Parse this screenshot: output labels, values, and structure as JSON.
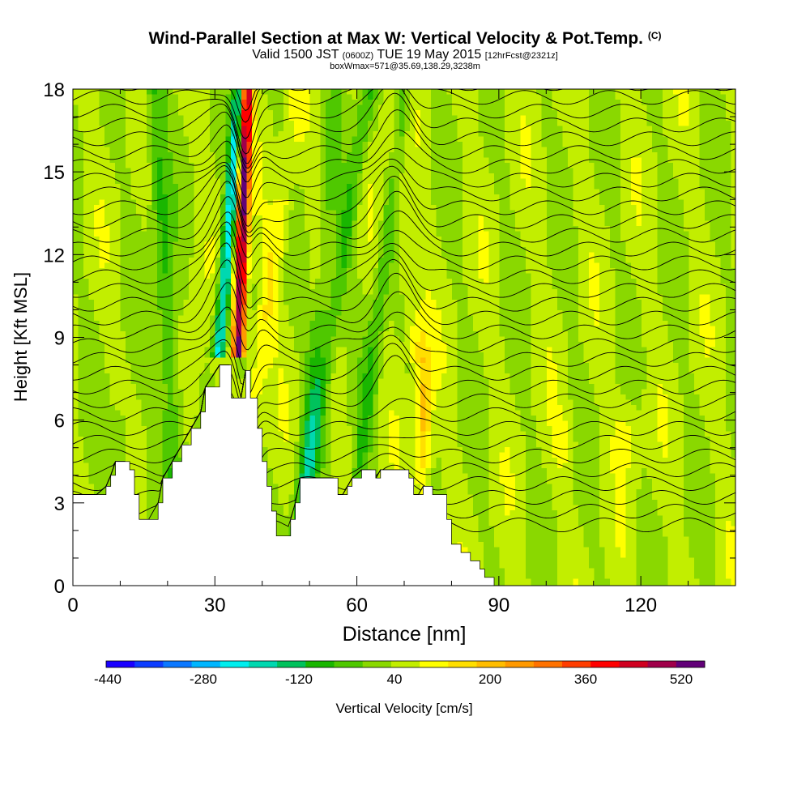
{
  "titles": {
    "main": "Wind-Parallel Section at Max W: Vertical Velocity & Pot.Temp.",
    "copyright": "(C)",
    "valid_prefix": "Valid 1500 JST",
    "valid_utc": "(0600Z)",
    "valid_date": "TUE 19 May 2015",
    "forecast": "[12hrFcst@2321z]",
    "box_info": "boxWmax=571@35.69,138.29,3238m"
  },
  "chart_data": {
    "type": "heatmap",
    "title": "Wind-Parallel Section at Max W: Vertical Velocity & Pot.Temp.",
    "xlabel": "Distance [nm]",
    "ylabel": "Height [Kft MSL]",
    "xlim": [
      0,
      140
    ],
    "ylim": [
      0,
      18
    ],
    "x_ticks": [
      0,
      30,
      60,
      90,
      120
    ],
    "y_ticks": [
      0,
      3,
      6,
      9,
      12,
      15,
      18
    ],
    "terrain_kft": [
      [
        0,
        3.3
      ],
      [
        5,
        3.3
      ],
      [
        7,
        3.6
      ],
      [
        8,
        4.0
      ],
      [
        9,
        4.5
      ],
      [
        11,
        4.5
      ],
      [
        12,
        4.2
      ],
      [
        13,
        3.3
      ],
      [
        14,
        2.4
      ],
      [
        16,
        2.4
      ],
      [
        18,
        3.0
      ],
      [
        19,
        3.9
      ],
      [
        21,
        4.5
      ],
      [
        23,
        5.1
      ],
      [
        25,
        5.7
      ],
      [
        27,
        6.3
      ],
      [
        28,
        7.2
      ],
      [
        31,
        8.0
      ],
      [
        33,
        8.0
      ],
      [
        33.5,
        6.8
      ],
      [
        35.5,
        6.8
      ],
      [
        36.5,
        7.8
      ],
      [
        37.5,
        6.8
      ],
      [
        39,
        5.7
      ],
      [
        40,
        4.5
      ],
      [
        41,
        3.6
      ],
      [
        42,
        2.7
      ],
      [
        43,
        1.8
      ],
      [
        45,
        1.8
      ],
      [
        46,
        2.4
      ],
      [
        47,
        3.0
      ],
      [
        48,
        3.9
      ],
      [
        51,
        3.9
      ],
      [
        55,
        3.9
      ],
      [
        56,
        3.3
      ],
      [
        57,
        3.3
      ],
      [
        58,
        3.6
      ],
      [
        59,
        3.9
      ],
      [
        61,
        4.2
      ],
      [
        63,
        4.2
      ],
      [
        64,
        3.9
      ],
      [
        65,
        4.2
      ],
      [
        69,
        4.2
      ],
      [
        71,
        3.9
      ],
      [
        72,
        3.3
      ],
      [
        73,
        3.3
      ],
      [
        74,
        3.6
      ],
      [
        76,
        3.3
      ],
      [
        79,
        2.4
      ],
      [
        80,
        1.5
      ],
      [
        82,
        1.2
      ],
      [
        84,
        0.9
      ],
      [
        86,
        0.6
      ],
      [
        87,
        0.3
      ],
      [
        88,
        0.3
      ],
      [
        89,
        0
      ]
    ],
    "vertical_velocity_cm_s": {
      "colorbar_ticks": [
        -440,
        -280,
        -120,
        40,
        200,
        360,
        520
      ],
      "colorbar_label": "Vertical Velocity [cm/s]",
      "colors": [
        "#1a00ff",
        "#0d3dff",
        "#0b78ff",
        "#00b6ff",
        "#00eeee",
        "#00d8b0",
        "#00c25c",
        "#19b600",
        "#4fc800",
        "#8ad800",
        "#c2ee00",
        "#ffff00",
        "#ffdf00",
        "#ffbd00",
        "#ff9900",
        "#ff7200",
        "#ff3d00",
        "#ff0000",
        "#d00020",
        "#a0004a",
        "#620078"
      ],
      "max": 571,
      "features": [
        {
          "kind": "updraft",
          "x": [
            35,
            37.5
          ],
          "top_kft": 18,
          "bottom_kft": 8.2,
          "peak": 571
        },
        {
          "kind": "downdraft",
          "x": [
            31,
            35
          ],
          "top_kft": 18,
          "bottom_kft": 8.5,
          "peak": -300
        },
        {
          "kind": "updraft",
          "x": [
            38,
            44
          ],
          "top_kft": 12,
          "bottom_kft": 4,
          "peak": 120
        },
        {
          "kind": "downdraft",
          "x": [
            48,
            58
          ],
          "top_kft": 18,
          "bottom_kft": 4,
          "peak": -120
        },
        {
          "kind": "updraft",
          "x": [
            71,
            76
          ],
          "top_kft": 8,
          "bottom_kft": 3.3,
          "peak": 200
        },
        {
          "kind": "downdraft",
          "x": [
            66,
            72
          ],
          "top_kft": 18,
          "bottom_kft": 7.5,
          "peak": -60
        }
      ]
    },
    "potential_temperature_contours": {
      "description": "black isentropes, tightly packed near x 30-40 nm and 60-72 nm"
    }
  }
}
